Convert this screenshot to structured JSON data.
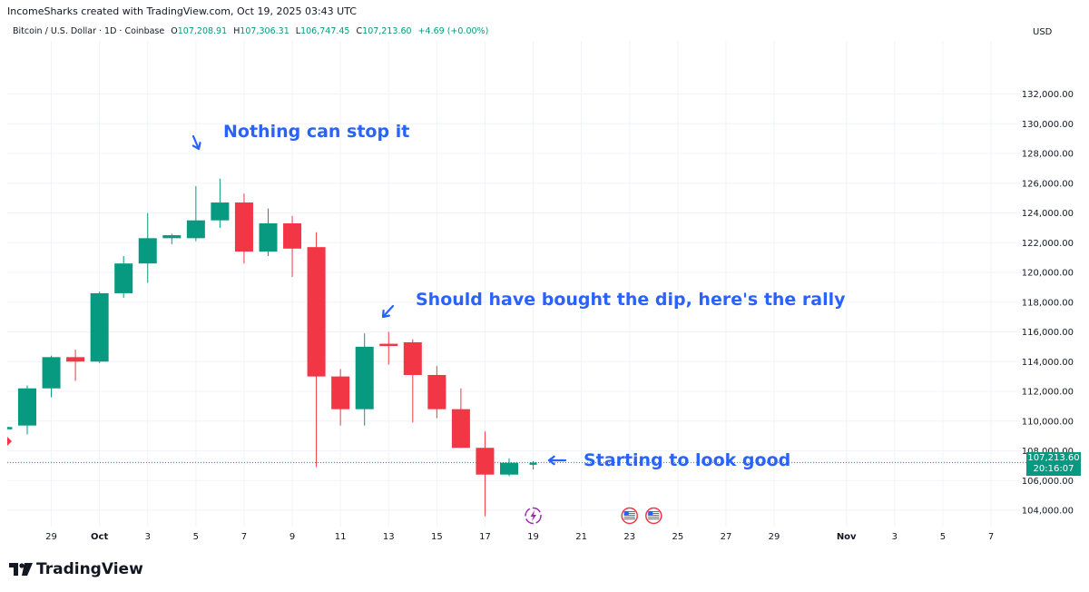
{
  "header": {
    "attribution": "IncomeSharks created with TradingView.com, Oct 19, 2025 03:43 UTC",
    "symbol": "Bitcoin / U.S. Dollar · 1D · Coinbase",
    "o_label": "O",
    "o_value": "107,208.91",
    "h_label": "H",
    "h_value": "107,306.31",
    "l_label": "L",
    "l_value": "106,747.45",
    "c_label": "C",
    "c_value": "107,213.60",
    "change": "+4.69 (+0.00%)",
    "currency": "USD"
  },
  "price_tag": {
    "price": "107,213.60",
    "countdown": "20:16:07"
  },
  "logo": {
    "text": "TradingView"
  },
  "colors": {
    "up": "#089981",
    "down": "#F23645",
    "annotation": "#2962FF",
    "last_price": "#089981"
  },
  "chart_data": {
    "type": "candlestick",
    "y_unit": "USD",
    "ylim": [
      102500,
      133000
    ],
    "y_ticks": [
      104000,
      106000,
      108000,
      110000,
      112000,
      114000,
      116000,
      118000,
      120000,
      122000,
      124000,
      126000,
      128000,
      130000,
      132000
    ],
    "y_tick_labels": [
      "104,000.00",
      "106,000.00",
      "108,000.00",
      "110,000.00",
      "112,000.00",
      "114,000.00",
      "116,000.00",
      "118,000.00",
      "120,000.00",
      "122,000.00",
      "124,000.00",
      "126,000.00",
      "128,000.00",
      "130,000.00",
      "132,000.00"
    ],
    "x_ticks": [
      {
        "label": "29",
        "index": 1
      },
      {
        "label": "Oct",
        "index": 3
      },
      {
        "label": "3",
        "index": 5
      },
      {
        "label": "5",
        "index": 7
      },
      {
        "label": "7",
        "index": 9
      },
      {
        "label": "9",
        "index": 11
      },
      {
        "label": "11",
        "index": 13
      },
      {
        "label": "13",
        "index": 15
      },
      {
        "label": "15",
        "index": 17
      },
      {
        "label": "17",
        "index": 19
      },
      {
        "label": "19",
        "index": 21
      },
      {
        "label": "21",
        "index": 23
      },
      {
        "label": "23",
        "index": 25
      },
      {
        "label": "25",
        "index": 27
      },
      {
        "label": "27",
        "index": 29
      },
      {
        "label": "29",
        "index": 31
      },
      {
        "label": "Nov",
        "index": 34
      },
      {
        "label": "3",
        "index": 36
      },
      {
        "label": "5",
        "index": 38
      },
      {
        "label": "7",
        "index": 40
      }
    ],
    "x_range_index": [
      -0.5,
      42.5
    ],
    "candles": [
      {
        "date": "Sep 27",
        "i": -1,
        "o": 109500,
        "h": 109800,
        "l": 109400,
        "c": 109600
      },
      {
        "date": "Sep 28",
        "i": 0,
        "o": 109700,
        "h": 112400,
        "l": 109100,
        "c": 112200
      },
      {
        "date": "Sep 29",
        "i": 1,
        "o": 112200,
        "h": 114400,
        "l": 111600,
        "c": 114300
      },
      {
        "date": "Sep 30",
        "i": 2,
        "o": 114300,
        "h": 114800,
        "l": 112700,
        "c": 114000
      },
      {
        "date": "Oct 1",
        "i": 3,
        "o": 114000,
        "h": 118700,
        "l": 113900,
        "c": 118600
      },
      {
        "date": "Oct 2",
        "i": 4,
        "o": 118600,
        "h": 121100,
        "l": 118300,
        "c": 120600
      },
      {
        "date": "Oct 3",
        "i": 5,
        "o": 120600,
        "h": 124000,
        "l": 119300,
        "c": 122300
      },
      {
        "date": "Oct 4",
        "i": 6,
        "o": 122300,
        "h": 122600,
        "l": 121900,
        "c": 122500
      },
      {
        "date": "Oct 5",
        "i": 7,
        "o": 122300,
        "h": 125800,
        "l": 122100,
        "c": 123500
      },
      {
        "date": "Oct 6",
        "i": 8,
        "o": 123500,
        "h": 126300,
        "l": 123000,
        "c": 124700
      },
      {
        "date": "Oct 7",
        "i": 9,
        "o": 124700,
        "h": 125300,
        "l": 120600,
        "c": 121400
      },
      {
        "date": "Oct 8",
        "i": 10,
        "o": 121400,
        "h": 124300,
        "l": 121100,
        "c": 123300
      },
      {
        "date": "Oct 9",
        "i": 11,
        "o": 123300,
        "h": 123800,
        "l": 119700,
        "c": 121600
      },
      {
        "date": "Oct 10",
        "i": 12,
        "o": 121700,
        "h": 122700,
        "l": 106900,
        "c": 113000
      },
      {
        "date": "Oct 11",
        "i": 13,
        "o": 113000,
        "h": 113500,
        "l": 109700,
        "c": 110800
      },
      {
        "date": "Oct 12",
        "i": 14,
        "o": 110800,
        "h": 115900,
        "l": 109700,
        "c": 115000
      },
      {
        "date": "Oct 13",
        "i": 15,
        "o": 115200,
        "h": 116000,
        "l": 113800,
        "c": 115100
      },
      {
        "date": "Oct 14",
        "i": 16,
        "o": 115300,
        "h": 115500,
        "l": 109900,
        "c": 113100
      },
      {
        "date": "Oct 15",
        "i": 17,
        "o": 113100,
        "h": 113700,
        "l": 110200,
        "c": 110800
      },
      {
        "date": "Oct 16",
        "i": 18,
        "o": 110800,
        "h": 112200,
        "l": 108200,
        "c": 108200
      },
      {
        "date": "Oct 17",
        "i": 19,
        "o": 108200,
        "h": 109300,
        "l": 103600,
        "c": 106400
      },
      {
        "date": "Oct 18",
        "i": 20,
        "o": 106400,
        "h": 107500,
        "l": 106300,
        "c": 107200
      },
      {
        "date": "Oct 19",
        "i": 21,
        "o": 107209,
        "h": 107306,
        "l": 106747,
        "c": 107214
      }
    ],
    "last_price": 107213.6,
    "annotations": [
      {
        "text": "Nothing can stop it",
        "target_index": 7,
        "target_price": 126000,
        "arrow": "down"
      },
      {
        "text": "Should have bought the dip, here's the rally",
        "target_index": 15,
        "target_price": 116200,
        "arrow": "down-left"
      },
      {
        "text": "Starting to look good",
        "target_index": 22,
        "target_price": 107200,
        "arrow": "left"
      }
    ],
    "event_markers": [
      {
        "type": "bolt-event",
        "index": 21
      },
      {
        "type": "us-flag",
        "index": 25
      },
      {
        "type": "us-flag",
        "index": 26
      }
    ]
  }
}
